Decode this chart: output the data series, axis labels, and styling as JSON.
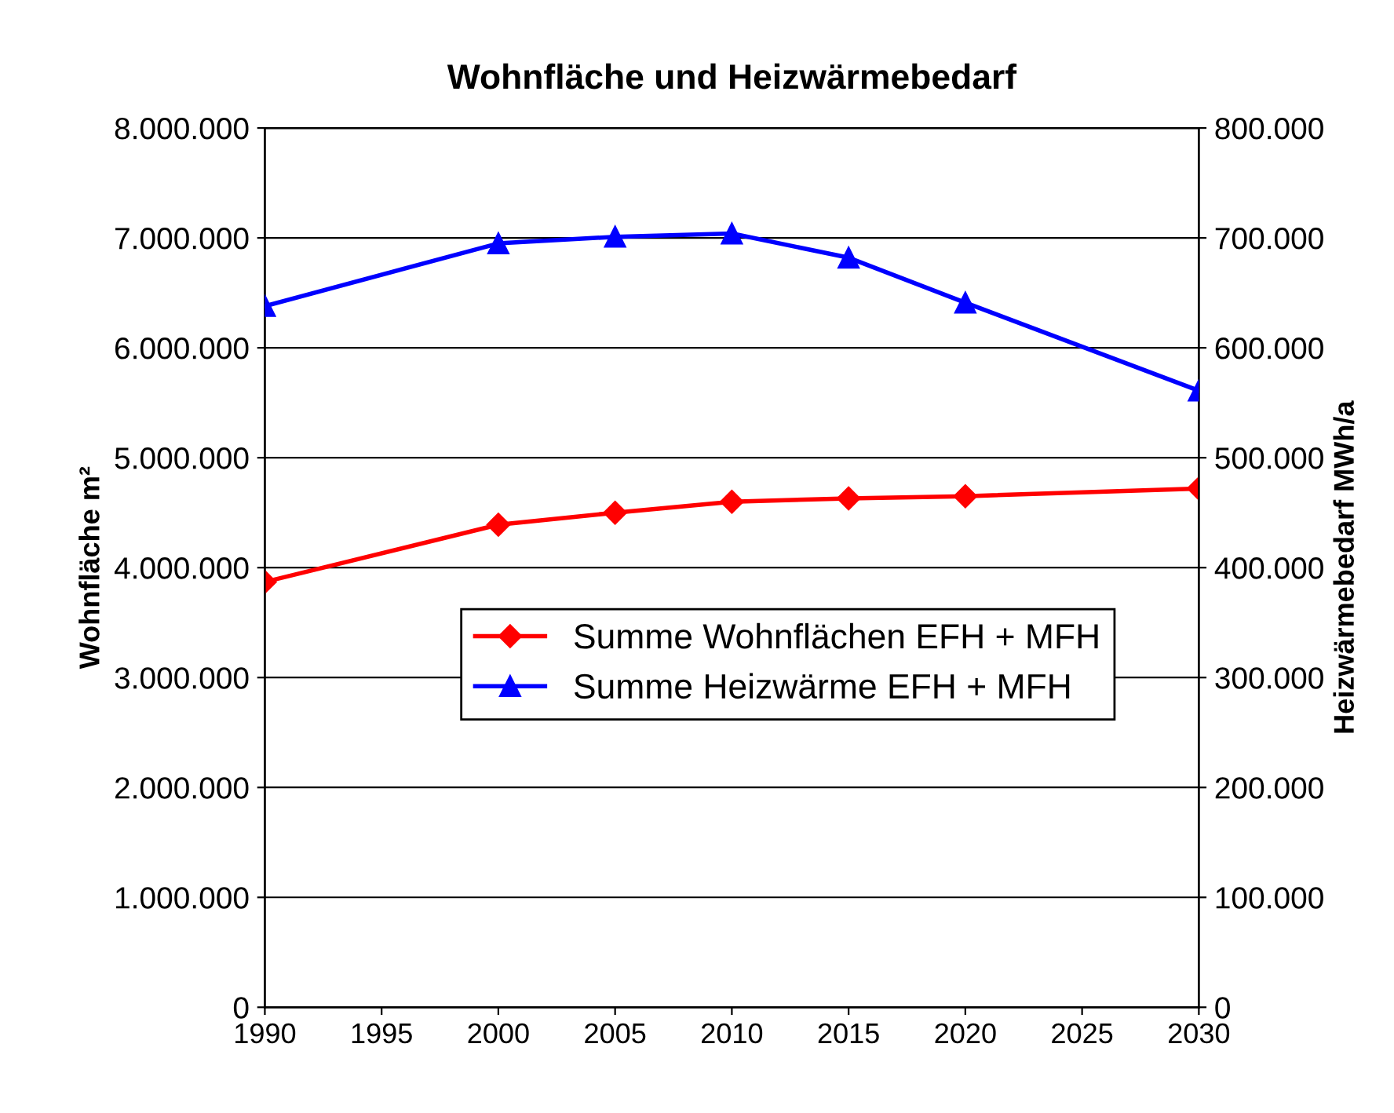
{
  "chart_data": {
    "type": "line",
    "title": "Wohnfläche und Heizwärmebedarf",
    "ylabel": "Wohnfläche m²",
    "y2label": "Heizwärmebedarf MWh/a",
    "x": [
      1990,
      2000,
      2005,
      2010,
      2015,
      2020,
      2030
    ],
    "series": [
      {
        "name": "Summe Wohnflächen EFH + MFH",
        "color": "#ff0000",
        "marker": "diamond",
        "values": [
          3870000,
          4390000,
          4500000,
          4600000,
          4630000,
          4650000,
          4720000
        ]
      },
      {
        "name": "Summe Heizwärme EFH + MFH",
        "color": "#0000ff",
        "marker": "triangle",
        "axis": "y2",
        "values": [
          638000,
          695000,
          701000,
          704000,
          682000,
          641000,
          561000
        ]
      }
    ],
    "xlim": [
      1990,
      2030
    ],
    "xticks": [
      1990,
      1995,
      2000,
      2005,
      2010,
      2015,
      2020,
      2025,
      2030
    ],
    "ylim": [
      0,
      8000000
    ],
    "yticks": [
      0,
      {
        "value": 1000000,
        "label": "1.000.000"
      },
      {
        "value": 2000000,
        "label": "2.000.000"
      },
      {
        "value": 3000000,
        "label": "3.000.000"
      },
      {
        "value": 4000000,
        "label": "4.000.000"
      },
      {
        "value": 5000000,
        "label": "5.000.000"
      },
      {
        "value": 6000000,
        "label": "6.000.000"
      },
      {
        "value": 7000000,
        "label": "7.000.000"
      },
      {
        "value": 8000000,
        "label": "8.000.000"
      }
    ],
    "y2lim": [
      0,
      800000
    ],
    "y2ticks": [
      0,
      {
        "value": 100000,
        "label": "100.000"
      },
      {
        "value": 200000,
        "label": "200.000"
      },
      {
        "value": 300000,
        "label": "300.000"
      },
      {
        "value": 400000,
        "label": "400.000"
      },
      {
        "value": 500000,
        "label": "500.000"
      },
      {
        "value": 600000,
        "label": "600.000"
      },
      {
        "value": 700000,
        "label": "700.000"
      },
      {
        "value": 800000,
        "label": "800.000"
      }
    ],
    "grid": "y",
    "legend": "center",
    "line_style": "solid"
  }
}
